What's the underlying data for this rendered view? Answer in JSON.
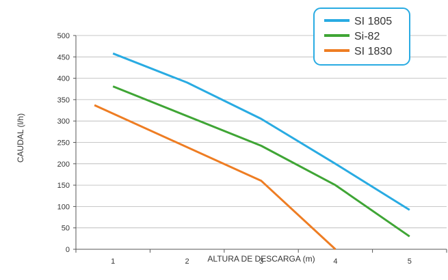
{
  "chart_data": {
    "type": "line",
    "title": "",
    "xlabel": "ALTURA DE DESCARGA (m)",
    "ylabel": "CAUDAL (l/h)",
    "x_ticks": [
      "1",
      "2",
      "3",
      "4",
      "5"
    ],
    "y_ticks": [
      "0",
      "50",
      "100",
      "150",
      "200",
      "250",
      "300",
      "350",
      "400",
      "450",
      "500"
    ],
    "xlim": [
      0.5,
      5.5
    ],
    "ylim": [
      0,
      500
    ],
    "grid": true,
    "legend_position": "top-right",
    "series": [
      {
        "name": "SI 1805",
        "color": "#29abe2",
        "x": [
          1,
          2,
          3,
          4,
          5
        ],
        "y": [
          458,
          390,
          305,
          200,
          92
        ]
      },
      {
        "name": "Si-82",
        "color": "#3fa535",
        "x": [
          1,
          3,
          4,
          5
        ],
        "y": [
          381,
          242,
          150,
          30
        ]
      },
      {
        "name": "SI 1830",
        "color": "#ee7d23",
        "x": [
          0.75,
          3,
          4
        ],
        "y": [
          337,
          160,
          0
        ]
      }
    ],
    "legend_box_color": "#29abe2"
  }
}
